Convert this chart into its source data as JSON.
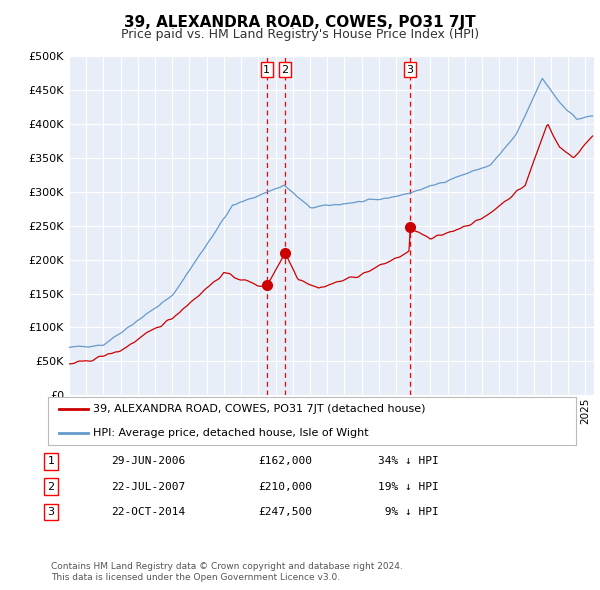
{
  "title": "39, ALEXANDRA ROAD, COWES, PO31 7JT",
  "subtitle": "Price paid vs. HM Land Registry's House Price Index (HPI)",
  "legend_label_red": "39, ALEXANDRA ROAD, COWES, PO31 7JT (detached house)",
  "legend_label_blue": "HPI: Average price, detached house, Isle of Wight",
  "footer1": "Contains HM Land Registry data © Crown copyright and database right 2024.",
  "footer2": "This data is licensed under the Open Government Licence v3.0.",
  "transactions": [
    {
      "num": 1,
      "date": "29-JUN-2006",
      "price": 162000,
      "pct": "34%",
      "dir": "↓",
      "x_year": 2006.49
    },
    {
      "num": 2,
      "date": "22-JUL-2007",
      "price": 210000,
      "pct": "19%",
      "dir": "↓",
      "x_year": 2007.55
    },
    {
      "num": 3,
      "date": "22-OCT-2014",
      "price": 247500,
      "pct": "9%",
      "dir": "↓",
      "x_year": 2014.81
    }
  ],
  "hpi_color": "#6699cc",
  "price_color": "#cc0000",
  "background_color": "#e8eef8",
  "grid_color": "#ffffff",
  "ylim": [
    0,
    500000
  ],
  "xlim_start": 1995.0,
  "xlim_end": 2025.5
}
